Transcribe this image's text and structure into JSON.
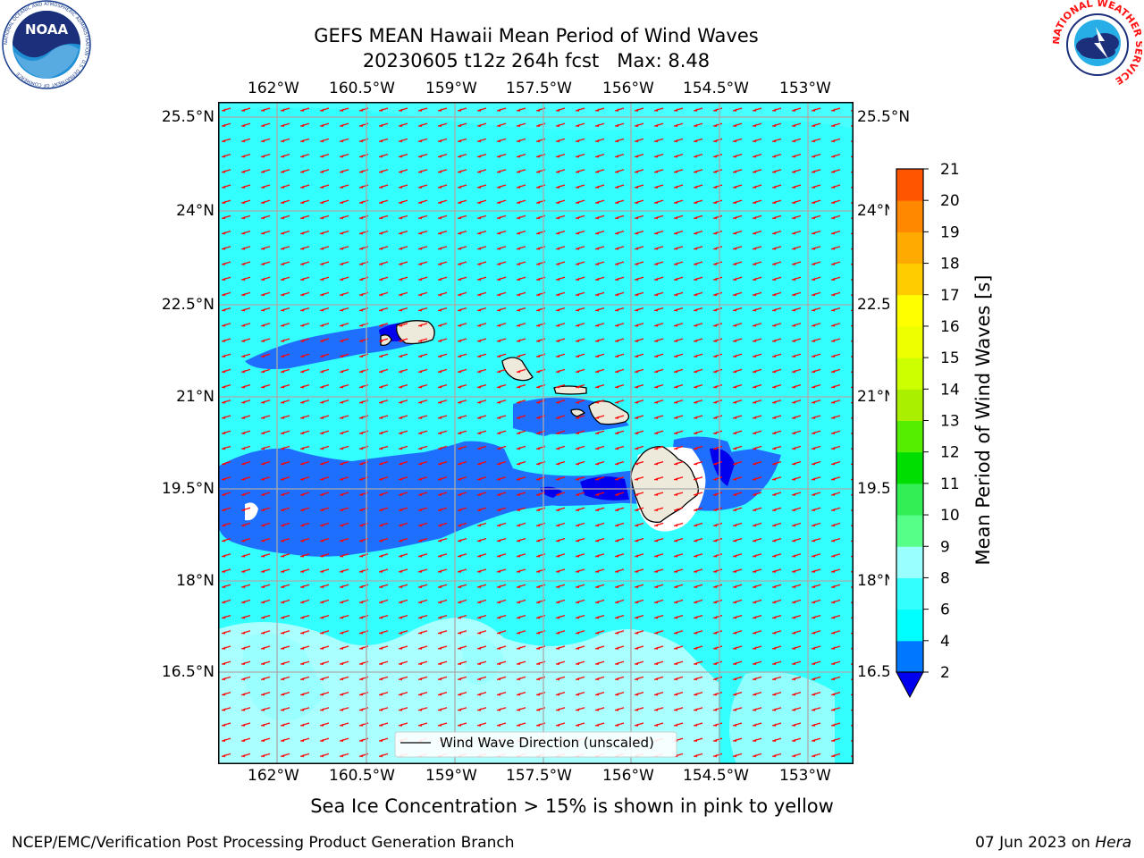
{
  "title": {
    "line1": "GEFS MEAN Hawaii Mean Period of Wind Waves",
    "line2": "20230605 t12z 264h fcst   Max: 8.48"
  },
  "logos": {
    "left_org": "NOAA",
    "left_ring": "NATIONAL OCEANIC AND ATMOSPHERIC ADMINISTRATION · U.S. DEPARTMENT OF COMMERCE",
    "right_ring": "NATIONAL WEATHER SERVICE"
  },
  "map": {
    "lon_ticks": [
      "162°W",
      "160.5°W",
      "159°W",
      "157.5°W",
      "156°W",
      "154.5°W",
      "153°W"
    ],
    "lat_ticks_left": [
      "25.5°N",
      "24°N",
      "22.5°N",
      "21°N",
      "19.5°N",
      "18°N",
      "16.5°N"
    ],
    "lat_ticks_right": [
      "25.5°N",
      "24°N",
      "22.5°N",
      "21°N",
      "19.5°N",
      "18°N",
      "16.5°N"
    ],
    "legend_label": "Wind Wave Direction (unscaled)",
    "arrow_direction": "west-southwest",
    "ocean_color": "#33ffff",
    "arrow_color": "#ff0000",
    "land_color": "#eeeadb"
  },
  "colorbar": {
    "label": "Mean Period of Wind Waves [s]",
    "ticks": [
      "2",
      "4",
      "6",
      "8",
      "9",
      "10",
      "11",
      "12",
      "13",
      "14",
      "15",
      "16",
      "17",
      "18",
      "19",
      "20",
      "21"
    ],
    "colors": [
      "#0077ff",
      "#00ffff",
      "#33ffff",
      "#99ffff",
      "#55ff88",
      "#33ee55",
      "#00dd00",
      "#55ee00",
      "#aaee00",
      "#ccff00",
      "#eeff00",
      "#ffff00",
      "#ffcc00",
      "#ffaa00",
      "#ff8800",
      "#ff5500",
      "#ff2200",
      "#ff0000"
    ],
    "under_color": "#0000ee"
  },
  "bottom_note": "Sea Ice Concentration > 15% is shown in pink to yellow",
  "footer": {
    "left": "NCEP/EMC/Verification Post Processing Product Generation Branch",
    "right_date": "07 Jun 2023 on ",
    "right_host": "Hera"
  }
}
